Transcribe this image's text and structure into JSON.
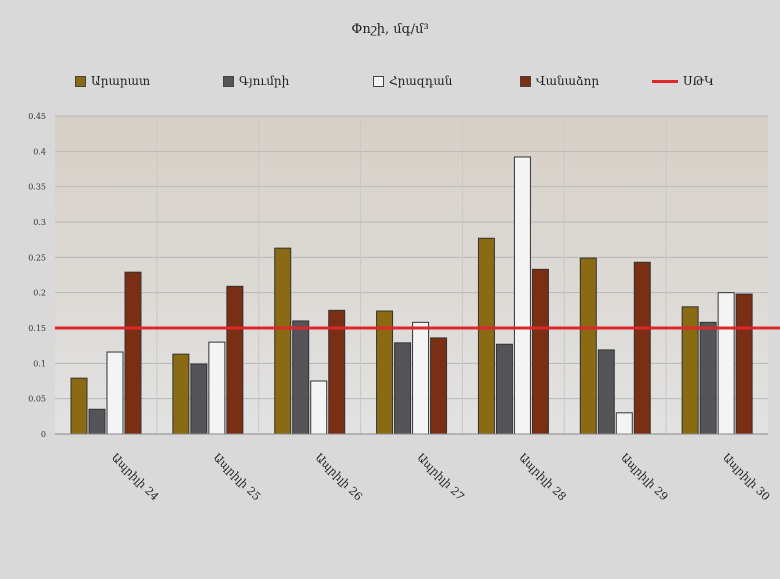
{
  "chart_data": {
    "type": "bar",
    "title": "Փոշի, մգ/մ³",
    "xlabel": "",
    "ylabel": "",
    "ylim": [
      0,
      0.45
    ],
    "yticks": [
      "0",
      "0.05",
      "0.1",
      "0.15",
      "0.2",
      "0.25",
      "0.3",
      "0.35",
      "0.4",
      "0.45"
    ],
    "grid": true,
    "legend_position": "top",
    "categories": [
      "Ապրիլի 24",
      "Ապրիլի 25",
      "Ապրիլի 26",
      "Ապրիլի 27",
      "Ապրիլի 28",
      "Ապրիլի 29",
      "Ապրիլի 30"
    ],
    "series": [
      {
        "name": "Արարատ",
        "color": "#8a6a12",
        "values": [
          0.079,
          0.113,
          0.263,
          0.174,
          0.277,
          0.249,
          0.18
        ]
      },
      {
        "name": "Գյումրի",
        "color": "#555559",
        "values": [
          0.035,
          0.099,
          0.16,
          0.129,
          0.127,
          0.119,
          0.158
        ]
      },
      {
        "name": "Հրազդան",
        "color": "#f4f4f4",
        "values": [
          0.116,
          0.13,
          0.075,
          0.158,
          0.392,
          0.03,
          0.2
        ]
      },
      {
        "name": "Վանաձոր",
        "color": "#7a2e14",
        "values": [
          0.229,
          0.209,
          0.175,
          0.136,
          0.233,
          0.243,
          0.198
        ]
      }
    ],
    "reference_line": {
      "name": "ՍԹԿ",
      "value": 0.15,
      "color": "#e0262b"
    }
  }
}
